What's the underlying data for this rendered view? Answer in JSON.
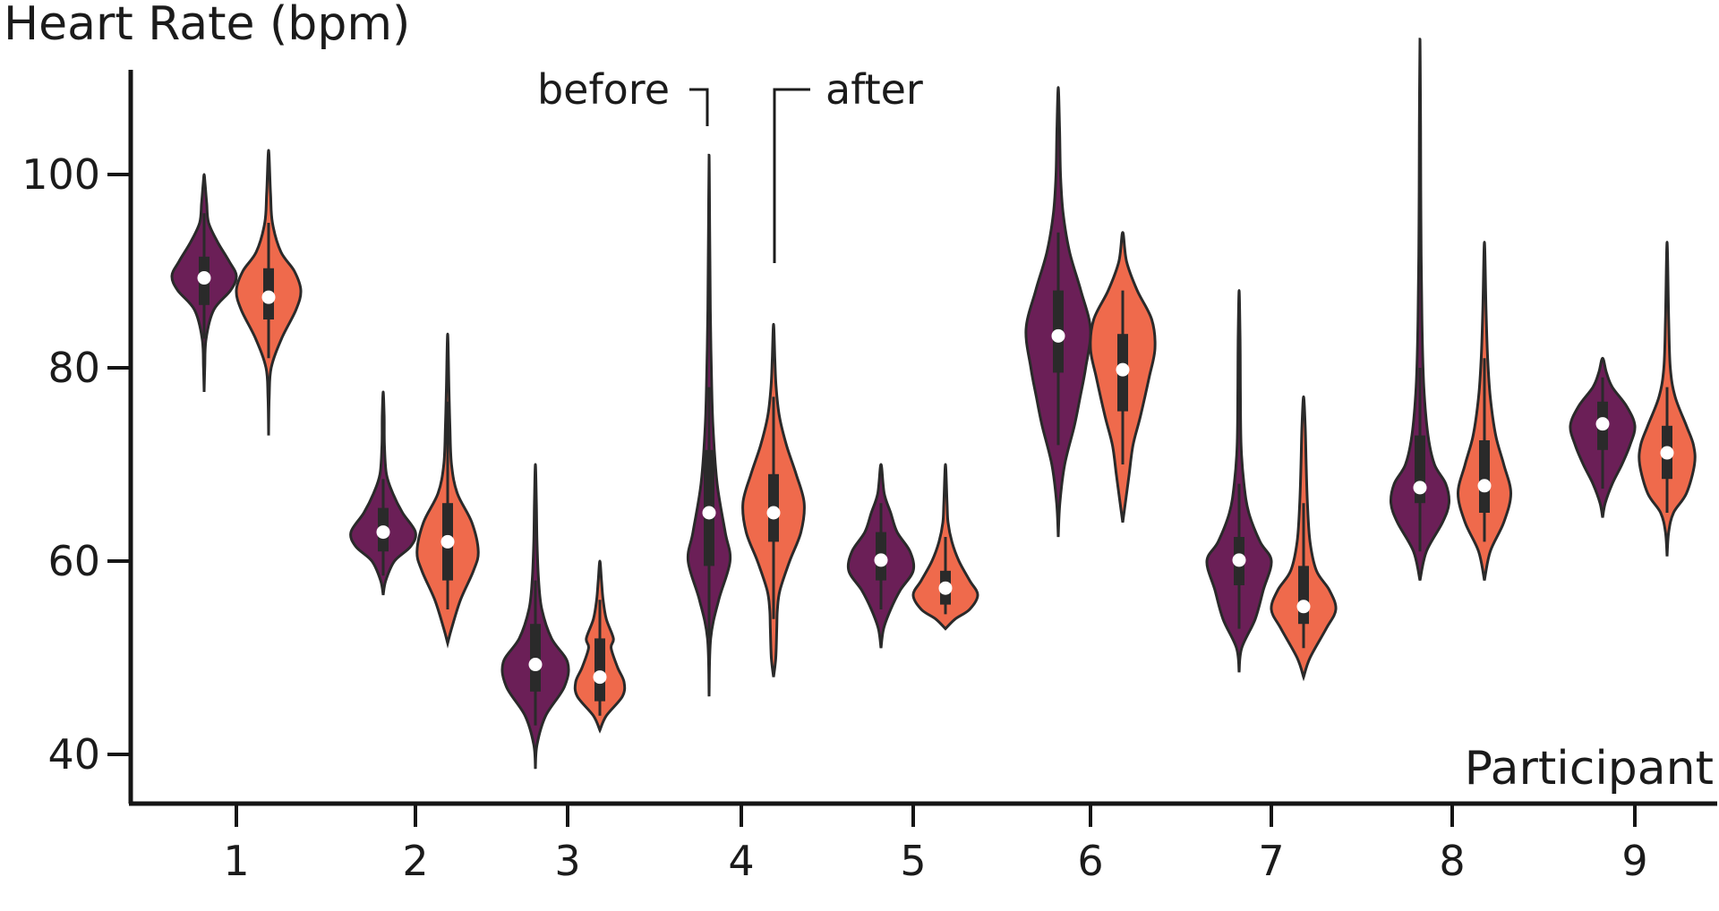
{
  "chart_data": {
    "type": "violin",
    "ylabel": "Heart Rate (bpm)",
    "xlabel": "Participant",
    "ylim": [
      36,
      112
    ],
    "yticks": [
      40,
      60,
      80,
      100
    ],
    "categories": [
      "1",
      "2",
      "3",
      "4",
      "5",
      "6",
      "7",
      "8",
      "9"
    ],
    "annotations": {
      "before_label": "before",
      "after_label": "after"
    },
    "colors": {
      "before": "#6b1f57",
      "after": "#ef6a4c"
    },
    "series": [
      {
        "name": "before",
        "stats": [
          {
            "min": 77.5,
            "max": 100,
            "q1": 86.5,
            "median": 89.3,
            "q3": 91.5,
            "whisker_low": 83,
            "whisker_high": 96,
            "widths": [
              [
                77.5,
                0
              ],
              [
                80,
                0.02
              ],
              [
                83,
                0.06
              ],
              [
                86,
                0.3
              ],
              [
                88,
                0.82
              ],
              [
                89.5,
                1
              ],
              [
                91,
                0.78
              ],
              [
                93,
                0.42
              ],
              [
                95,
                0.14
              ],
              [
                97,
                0.08
              ],
              [
                99,
                0.03
              ],
              [
                100,
                0
              ]
            ]
          },
          {
            "min": 56.5,
            "max": 77.5,
            "q1": 61,
            "median": 63,
            "q3": 65.5,
            "whisker_low": 58.5,
            "whisker_high": 68.5,
            "widths": [
              [
                56.5,
                0
              ],
              [
                58,
                0.08
              ],
              [
                60,
                0.35
              ],
              [
                61.5,
                0.85
              ],
              [
                63,
                1
              ],
              [
                65,
                0.6
              ],
              [
                67,
                0.3
              ],
              [
                69,
                0.1
              ],
              [
                72,
                0.04
              ],
              [
                75,
                0.03
              ],
              [
                77.5,
                0
              ]
            ]
          },
          {
            "min": 38.5,
            "max": 70,
            "q1": 46.5,
            "median": 49.3,
            "q3": 53.5,
            "whisker_low": 43,
            "whisker_high": 58,
            "widths": [
              [
                38.5,
                0
              ],
              [
                41,
                0.05
              ],
              [
                44,
                0.32
              ],
              [
                47,
                0.9
              ],
              [
                49.5,
                1
              ],
              [
                52,
                0.5
              ],
              [
                55,
                0.2
              ],
              [
                58,
                0.1
              ],
              [
                62,
                0.05
              ],
              [
                66,
                0.03
              ],
              [
                70,
                0
              ]
            ]
          },
          {
            "min": 46,
            "max": 102,
            "q1": 59.5,
            "median": 65,
            "q3": 71.5,
            "whisker_low": 52,
            "whisker_high": 78,
            "widths": [
              [
                46,
                0
              ],
              [
                52,
                0.05
              ],
              [
                56,
                0.3
              ],
              [
                60,
                0.65
              ],
              [
                63,
                0.5
              ],
              [
                68,
                0.25
              ],
              [
                74,
                0.12
              ],
              [
                80,
                0.07
              ],
              [
                86,
                0.04
              ],
              [
                94,
                0.02
              ],
              [
                102,
                0
              ]
            ]
          },
          {
            "min": 51,
            "max": 70,
            "q1": 58,
            "median": 60.1,
            "q3": 63,
            "whisker_low": 55,
            "whisker_high": 66,
            "widths": [
              [
                51,
                0
              ],
              [
                53,
                0.08
              ],
              [
                55,
                0.3
              ],
              [
                57,
                0.6
              ],
              [
                59,
                1
              ],
              [
                61,
                0.9
              ],
              [
                63,
                0.5
              ],
              [
                65,
                0.3
              ],
              [
                67,
                0.1
              ],
              [
                70,
                0
              ]
            ]
          },
          {
            "min": 62.5,
            "max": 109,
            "q1": 79.5,
            "median": 83.3,
            "q3": 88,
            "whisker_low": 72,
            "whisker_high": 94,
            "widths": [
              [
                62.5,
                0
              ],
              [
                66,
                0.05
              ],
              [
                70,
                0.2
              ],
              [
                74,
                0.5
              ],
              [
                77,
                0.68
              ],
              [
                80,
                0.85
              ],
              [
                84,
                1
              ],
              [
                88,
                0.7
              ],
              [
                92,
                0.35
              ],
              [
                96,
                0.15
              ],
              [
                100,
                0.07
              ],
              [
                105,
                0.04
              ],
              [
                109,
                0
              ]
            ]
          },
          {
            "min": 48.5,
            "max": 88,
            "q1": 57.5,
            "median": 60.1,
            "q3": 62.5,
            "whisker_low": 53,
            "whisker_high": 68,
            "widths": [
              [
                48.5,
                0
              ],
              [
                51,
                0.08
              ],
              [
                54,
                0.5
              ],
              [
                57,
                0.75
              ],
              [
                60,
                1
              ],
              [
                62,
                0.65
              ],
              [
                65,
                0.3
              ],
              [
                68,
                0.15
              ],
              [
                72,
                0.06
              ],
              [
                78,
                0.04
              ],
              [
                83,
                0.03
              ],
              [
                88,
                0
              ]
            ]
          },
          {
            "min": 58,
            "max": 114,
            "q1": 66,
            "median": 67.6,
            "q3": 73,
            "whisker_low": 61,
            "whisker_high": 80,
            "widths": [
              [
                58,
                0
              ],
              [
                61,
                0.2
              ],
              [
                64,
                0.7
              ],
              [
                66,
                0.9
              ],
              [
                68,
                0.8
              ],
              [
                70,
                0.45
              ],
              [
                73,
                0.25
              ],
              [
                78,
                0.12
              ],
              [
                85,
                0.06
              ],
              [
                95,
                0.03
              ],
              [
                105,
                0.02
              ],
              [
                114,
                0
              ]
            ]
          },
          {
            "min": 64.5,
            "max": 81,
            "q1": 71.5,
            "median": 74.2,
            "q3": 76.5,
            "whisker_low": 67.5,
            "whisker_high": 79,
            "widths": [
              [
                64.5,
                0
              ],
              [
                66,
                0.08
              ],
              [
                68,
                0.3
              ],
              [
                70,
                0.6
              ],
              [
                72,
                0.85
              ],
              [
                74,
                1
              ],
              [
                76,
                0.75
              ],
              [
                78,
                0.3
              ],
              [
                79.5,
                0.12
              ],
              [
                81,
                0
              ]
            ]
          }
        ]
      },
      {
        "name": "after",
        "stats": [
          {
            "min": 73,
            "max": 102.5,
            "q1": 85,
            "median": 87.3,
            "q3": 90.3,
            "whisker_low": 81,
            "whisker_high": 95,
            "widths": [
              [
                73,
                0
              ],
              [
                77,
                0.02
              ],
              [
                80,
                0.08
              ],
              [
                83,
                0.4
              ],
              [
                86,
                0.85
              ],
              [
                88,
                1
              ],
              [
                90,
                0.8
              ],
              [
                92,
                0.38
              ],
              [
                95,
                0.12
              ],
              [
                98,
                0.06
              ],
              [
                102.5,
                0
              ]
            ]
          },
          {
            "min": 51.5,
            "max": 83.5,
            "q1": 58,
            "median": 62,
            "q3": 66,
            "whisker_low": 55,
            "whisker_high": 76.5,
            "widths": [
              [
                51.5,
                0
              ],
              [
                53,
                0.12
              ],
              [
                56,
                0.4
              ],
              [
                59,
                0.8
              ],
              [
                61,
                0.95
              ],
              [
                64,
                0.75
              ],
              [
                67,
                0.3
              ],
              [
                70,
                0.12
              ],
              [
                74,
                0.07
              ],
              [
                78,
                0.04
              ],
              [
                83.5,
                0
              ]
            ]
          },
          {
            "min": 42.5,
            "max": 60,
            "q1": 45.5,
            "median": 48,
            "q3": 52,
            "whisker_low": 44,
            "whisker_high": 56,
            "widths": [
              [
                42.5,
                0
              ],
              [
                44,
                0.2
              ],
              [
                46,
                0.7
              ],
              [
                47.5,
                0.75
              ],
              [
                49,
                0.55
              ],
              [
                51,
                0.35
              ],
              [
                52,
                0.42
              ],
              [
                54,
                0.2
              ],
              [
                56,
                0.1
              ],
              [
                58,
                0.05
              ],
              [
                60,
                0
              ]
            ]
          },
          {
            "min": 48,
            "max": 84.5,
            "q1": 62,
            "median": 65,
            "q3": 69,
            "whisker_low": 54,
            "whisker_high": 77,
            "widths": [
              [
                48,
                0
              ],
              [
                50,
                0.07
              ],
              [
                53,
                0.1
              ],
              [
                55,
                0.12
              ],
              [
                57,
                0.2
              ],
              [
                60,
                0.5
              ],
              [
                63,
                0.85
              ],
              [
                66,
                0.95
              ],
              [
                69,
                0.7
              ],
              [
                72,
                0.4
              ],
              [
                75,
                0.18
              ],
              [
                78,
                0.08
              ],
              [
                81,
                0.04
              ],
              [
                84.5,
                0
              ]
            ]
          },
          {
            "min": 53,
            "max": 70,
            "q1": 55.5,
            "median": 57.2,
            "q3": 59,
            "whisker_low": 54.5,
            "whisker_high": 62.5,
            "widths": [
              [
                53,
                0
              ],
              [
                54,
                0.3
              ],
              [
                55,
                0.75
              ],
              [
                56.5,
                1
              ],
              [
                58,
                0.75
              ],
              [
                60,
                0.42
              ],
              [
                62,
                0.2
              ],
              [
                64,
                0.08
              ],
              [
                66,
                0.05
              ],
              [
                70,
                0
              ]
            ]
          },
          {
            "min": 64,
            "max": 94,
            "q1": 75.5,
            "median": 79.8,
            "q3": 83.5,
            "whisker_low": 70,
            "whisker_high": 88,
            "widths": [
              [
                64,
                0
              ],
              [
                66,
                0.08
              ],
              [
                69,
                0.2
              ],
              [
                72,
                0.32
              ],
              [
                75,
                0.55
              ],
              [
                79,
                0.82
              ],
              [
                82,
                1
              ],
              [
                85,
                0.9
              ],
              [
                88,
                0.45
              ],
              [
                91,
                0.12
              ],
              [
                94,
                0
              ]
            ]
          },
          {
            "min": 48,
            "max": 77,
            "q1": 53.5,
            "median": 55.3,
            "q3": 59.5,
            "whisker_low": 51,
            "whisker_high": 66,
            "widths": [
              [
                48,
                0
              ],
              [
                50,
                0.2
              ],
              [
                53,
                0.7
              ],
              [
                55,
                1
              ],
              [
                57,
                0.8
              ],
              [
                59,
                0.4
              ],
              [
                62,
                0.2
              ],
              [
                66,
                0.12
              ],
              [
                70,
                0.08
              ],
              [
                74,
                0.05
              ],
              [
                77,
                0
              ]
            ]
          },
          {
            "min": 58,
            "max": 93,
            "q1": 65,
            "median": 67.8,
            "q3": 72.5,
            "whisker_low": 62,
            "whisker_high": 81,
            "widths": [
              [
                58,
                0
              ],
              [
                61,
                0.18
              ],
              [
                64,
                0.6
              ],
              [
                67,
                0.82
              ],
              [
                70,
                0.6
              ],
              [
                73,
                0.35
              ],
              [
                77,
                0.18
              ],
              [
                81,
                0.1
              ],
              [
                86,
                0.05
              ],
              [
                93,
                0
              ]
            ]
          },
          {
            "min": 60.5,
            "max": 93,
            "q1": 68.5,
            "median": 71.2,
            "q3": 74,
            "whisker_low": 65,
            "whisker_high": 78,
            "widths": [
              [
                60.5,
                0
              ],
              [
                63,
                0.05
              ],
              [
                65,
                0.2
              ],
              [
                67,
                0.6
              ],
              [
                70,
                0.85
              ],
              [
                72,
                0.82
              ],
              [
                74,
                0.6
              ],
              [
                77,
                0.25
              ],
              [
                80,
                0.1
              ],
              [
                85,
                0.05
              ],
              [
                93,
                0
              ]
            ]
          }
        ]
      }
    ]
  }
}
